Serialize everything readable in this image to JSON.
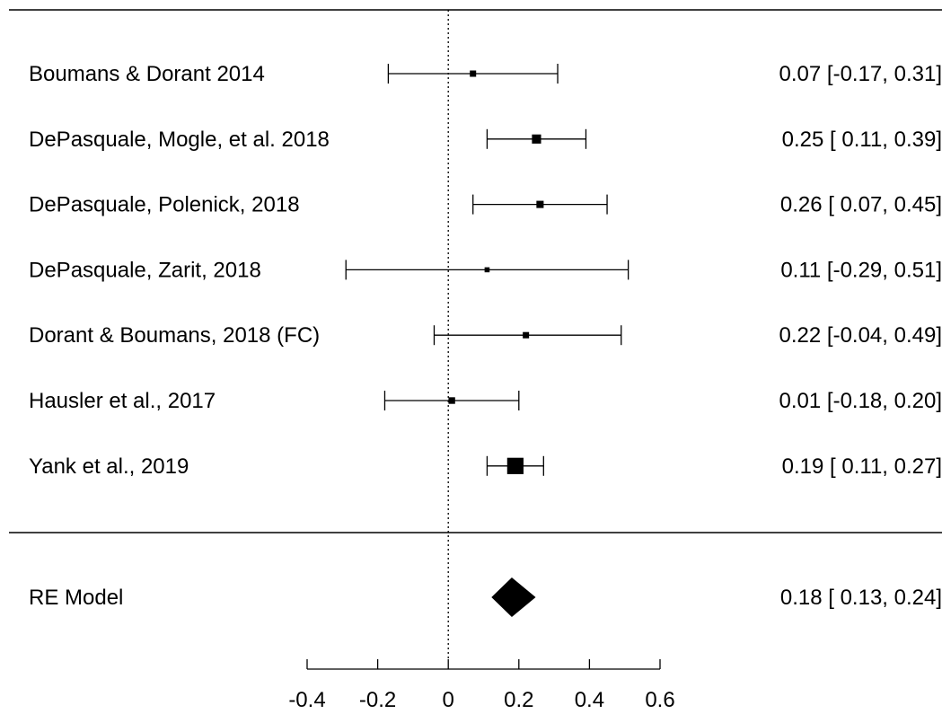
{
  "chart_data": {
    "type": "forest",
    "studies": [
      {
        "label": "Boumans & Dorant 2014",
        "estimate": 0.07,
        "lower": -0.17,
        "upper": 0.31,
        "text": "0.07 [-0.17, 0.31]",
        "weight": 1
      },
      {
        "label": "DePasquale, Mogle, et al. 2018",
        "estimate": 0.25,
        "lower": 0.11,
        "upper": 0.39,
        "text": "0.25 [ 0.11, 0.39]",
        "weight": 1.45
      },
      {
        "label": "DePasquale, Polenick, 2018",
        "estimate": 0.26,
        "lower": 0.07,
        "upper": 0.45,
        "text": "0.26 [ 0.07, 0.45]",
        "weight": 1.15
      },
      {
        "label": "DePasquale, Zarit, 2018",
        "estimate": 0.11,
        "lower": -0.29,
        "upper": 0.51,
        "text": "0.11 [-0.29, 0.51]",
        "weight": 0.8
      },
      {
        "label": "Dorant & Boumans, 2018 (FC)",
        "estimate": 0.22,
        "lower": -0.04,
        "upper": 0.49,
        "text": "0.22 [-0.04, 0.49]",
        "weight": 1
      },
      {
        "label": "Hausler et al., 2017",
        "estimate": 0.01,
        "lower": -0.18,
        "upper": 0.2,
        "text": "0.01 [-0.18, 0.20]",
        "weight": 1.05
      },
      {
        "label": "Yank et al., 2019",
        "estimate": 0.19,
        "lower": 0.11,
        "upper": 0.27,
        "text": "0.19 [ 0.11, 0.27]",
        "weight": 2.6
      }
    ],
    "summary": {
      "label": "RE Model",
      "estimate": 0.18,
      "lower": 0.13,
      "upper": 0.24,
      "text": "0.18 [ 0.13, 0.24]"
    },
    "x_ticks": [
      -0.4,
      -0.2,
      0,
      0.2,
      0.4,
      0.6
    ],
    "x_tick_labels": [
      "-0.4",
      "-0.2",
      "0",
      "0.2",
      "0.4",
      "0.6"
    ],
    "reference_line": 0,
    "xlim": [
      -0.4,
      0.6
    ]
  }
}
